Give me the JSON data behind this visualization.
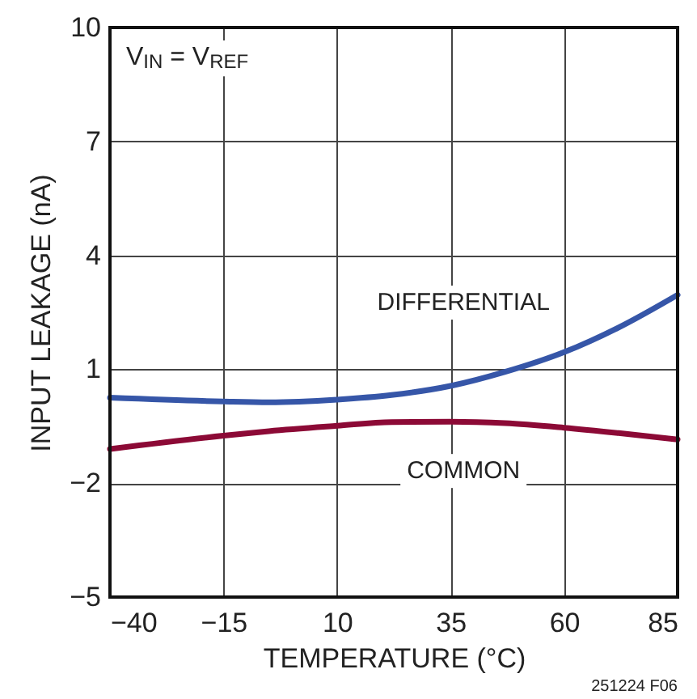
{
  "chart_data": {
    "type": "line",
    "xlabel": "TEMPERATURE (°C)",
    "ylabel": "INPUT LEAKAGE (nA)",
    "x": [
      -40,
      -15,
      -5,
      10,
      22,
      35,
      47,
      60,
      72,
      85
    ],
    "series": [
      {
        "name": "DIFFERENTIAL",
        "color": "#3656a8",
        "values": [
          0.25,
          0.15,
          0.13,
          0.2,
          0.32,
          0.56,
          0.93,
          1.45,
          2.1,
          2.96
        ]
      },
      {
        "name": "COMMON",
        "color": "#8c0a36",
        "values": [
          -1.1,
          -0.75,
          -0.63,
          -0.49,
          -0.39,
          -0.38,
          -0.42,
          -0.54,
          -0.68,
          -0.85
        ]
      }
    ],
    "xlim": [
      -40,
      85
    ],
    "xticks": [
      -40,
      -15,
      10,
      35,
      60,
      85
    ],
    "ylim": [
      -5,
      10
    ],
    "yticks": [
      -5,
      -2,
      1,
      4,
      7,
      10
    ],
    "grid": true,
    "marker": "none",
    "line_style": "solid",
    "annotations": [
      "V$_{IN}$ = V$_{REF}$",
      "251224 F06"
    ]
  }
}
